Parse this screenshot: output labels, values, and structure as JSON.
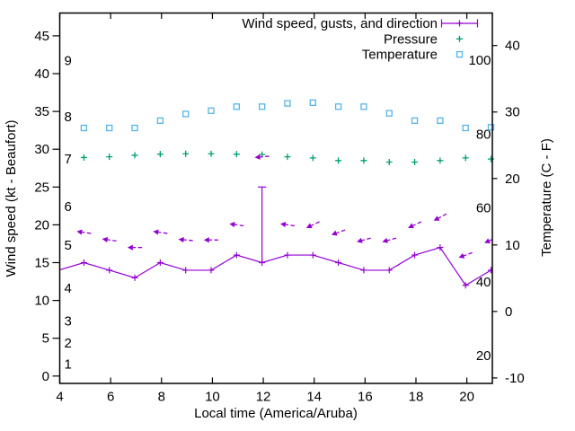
{
  "chart_data": {
    "type": "line",
    "title": "",
    "xlabel": "Local time (America/Aruba)",
    "ylabel": "Wind speed (kt - Beaufort)",
    "y2label": "Temperature (C - F)",
    "xlim": [
      4,
      21
    ],
    "ylim": [
      0,
      45
    ],
    "y2lim": [
      -10,
      40
    ],
    "x_ticks": [
      "4",
      "6",
      "8",
      "10",
      "12",
      "14",
      "16",
      "18",
      "20"
    ],
    "y_ticks": [
      "0",
      "5",
      "10",
      "15",
      "20",
      "25",
      "30",
      "35",
      "40",
      "45"
    ],
    "y2_ticks": [
      "-10",
      "0",
      "10",
      "20",
      "30",
      "40"
    ],
    "beaufort_scale_labels": [
      {
        "label": "1",
        "kt": 1.6
      },
      {
        "label": "2",
        "kt": 4.4
      },
      {
        "label": "3",
        "kt": 7.3
      },
      {
        "label": "4",
        "kt": 11.6
      },
      {
        "label": "5",
        "kt": 17.3
      },
      {
        "label": "6",
        "kt": 22.4
      },
      {
        "label": "7",
        "kt": 28.7
      },
      {
        "label": "8",
        "kt": 34.3
      },
      {
        "label": "9",
        "kt": 41.7
      }
    ],
    "fahrenheit_scale_labels": [
      {
        "label": "20",
        "f": 20
      },
      {
        "label": "40",
        "f": 40
      },
      {
        "label": "60",
        "f": 60
      },
      {
        "label": "80",
        "f": 80
      },
      {
        "label": "100",
        "f": 100
      }
    ],
    "x": [
      4.95,
      5.95,
      6.95,
      7.95,
      8.95,
      9.95,
      10.95,
      11.95,
      12.95,
      13.95,
      14.95,
      15.95,
      16.95,
      17.95,
      18.95,
      19.95,
      20.95
    ],
    "series": [
      {
        "name": "Wind speed, gusts, and direction",
        "color": "#9400d3",
        "axis": "left",
        "style": "linespoints-plus",
        "values": [
          15,
          14,
          13,
          15,
          14,
          14,
          16,
          15,
          16,
          16,
          15,
          14,
          14,
          16,
          17,
          12,
          14
        ],
        "lead_in": {
          "x": 3.95,
          "value": 14
        },
        "lead_out": {
          "x": 21.95,
          "value": 15
        },
        "gusts": [
          {
            "x": 11.95,
            "from": 15,
            "to": 25
          }
        ],
        "direction_arrows": [
          {
            "x": 4.95,
            "y": 19,
            "angle_deg": 172
          },
          {
            "x": 5.95,
            "y": 18,
            "angle_deg": 172
          },
          {
            "x": 6.95,
            "y": 17,
            "angle_deg": 180
          },
          {
            "x": 7.95,
            "y": 19,
            "angle_deg": 172
          },
          {
            "x": 8.95,
            "y": 18,
            "angle_deg": 175
          },
          {
            "x": 9.95,
            "y": 18,
            "angle_deg": 180
          },
          {
            "x": 10.95,
            "y": 20,
            "angle_deg": 172
          },
          {
            "x": 11.95,
            "y": 29,
            "angle_deg": 185
          },
          {
            "x": 12.95,
            "y": 20,
            "angle_deg": 172
          },
          {
            "x": 13.95,
            "y": 20,
            "angle_deg": 205
          },
          {
            "x": 14.95,
            "y": 19,
            "angle_deg": 200
          },
          {
            "x": 15.95,
            "y": 18,
            "angle_deg": 195
          },
          {
            "x": 16.95,
            "y": 18,
            "angle_deg": 195
          },
          {
            "x": 17.95,
            "y": 20,
            "angle_deg": 205
          },
          {
            "x": 18.95,
            "y": 21,
            "angle_deg": 208
          },
          {
            "x": 19.95,
            "y": 16,
            "angle_deg": 200
          },
          {
            "x": 20.95,
            "y": 18,
            "angle_deg": 205
          }
        ]
      },
      {
        "name": "Pressure",
        "color": "#009e73",
        "axis": "left",
        "style": "points-plus",
        "values": [
          28.9,
          29.0,
          29.2,
          29.35,
          29.4,
          29.4,
          29.35,
          29.3,
          29.0,
          28.85,
          28.5,
          28.5,
          28.3,
          28.3,
          28.5,
          28.85,
          28.7
        ]
      },
      {
        "name": "Temperature",
        "color": "#56b4e9",
        "axis": "right",
        "style": "points-open-square",
        "values": [
          27.6,
          27.6,
          27.6,
          28.7,
          29.7,
          30.2,
          30.8,
          30.8,
          31.3,
          31.4,
          30.8,
          30.8,
          29.8,
          28.7,
          28.7,
          27.6,
          27.7
        ]
      }
    ],
    "legend": {
      "position": "top-right"
    }
  }
}
